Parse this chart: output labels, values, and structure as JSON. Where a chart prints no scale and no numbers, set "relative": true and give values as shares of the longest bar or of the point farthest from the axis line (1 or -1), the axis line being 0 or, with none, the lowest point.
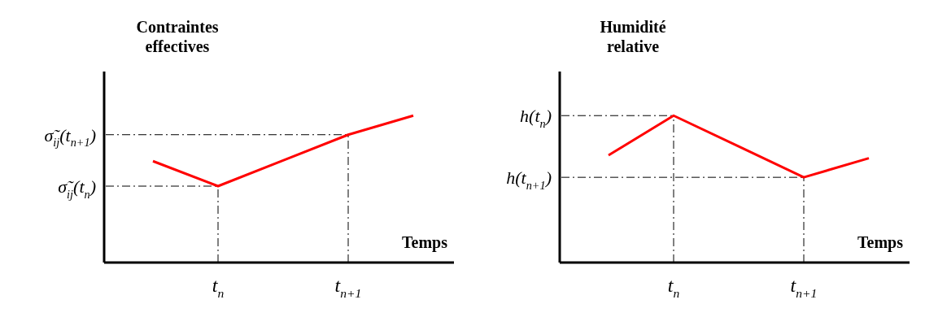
{
  "chart_data": [
    {
      "type": "line",
      "relative": true,
      "ylabel": "Contraintes effectives",
      "xlabel": "Temps",
      "categories": [
        null,
        "t$_{n}$",
        null,
        "t$_{n+1}$",
        null
      ],
      "series": [
        {
          "color": "#ff0000",
          "values": [
            0.69,
            0.52,
            0.695,
            0.87,
            1
          ]
        }
      ],
      "ref_lines": [
        {
          "axis": "x",
          "value": "t$_{n}$",
          "line_style": "dashed",
          "color": "#000000"
        },
        {
          "axis": "x",
          "value": "t$_{n+1}$",
          "line_style": "dashed",
          "color": "#000000"
        },
        {
          "axis": "y",
          "value": 0.52,
          "label": "σ̃$_{ij}$(t$_{n}$)",
          "line_style": "dashed",
          "color": "#000000"
        },
        {
          "axis": "y",
          "value": 0.87,
          "label": "σ̃$_{ij}$(t$_{n+1}$)",
          "line_style": "dashed",
          "color": "#000000"
        }
      ],
      "marker": "none",
      "grid": false,
      "legend": false
    },
    {
      "type": "line",
      "relative": true,
      "ylabel": "Humidité relative",
      "xlabel": "Temps",
      "categories": [
        null,
        "t$_{n}$",
        null,
        "t$_{n+1}$",
        null
      ],
      "series": [
        {
          "color": "#ff0000",
          "values": [
            0.73,
            1,
            0.79,
            0.58,
            0.71
          ]
        }
      ],
      "ref_lines": [
        {
          "axis": "x",
          "value": "t$_{n}$",
          "line_style": "dashed",
          "color": "#000000"
        },
        {
          "axis": "x",
          "value": "t$_{n+1}$",
          "line_style": "dashed",
          "color": "#000000"
        },
        {
          "axis": "y",
          "value": 1,
          "label": "h(t$_{n}$)",
          "line_style": "dashed",
          "color": "#000000"
        },
        {
          "axis": "y",
          "value": 0.58,
          "label": "h(t$_{n+1}$)",
          "line_style": "dashed",
          "color": "#000000"
        }
      ],
      "marker": "none",
      "grid": false,
      "legend": false
    }
  ]
}
